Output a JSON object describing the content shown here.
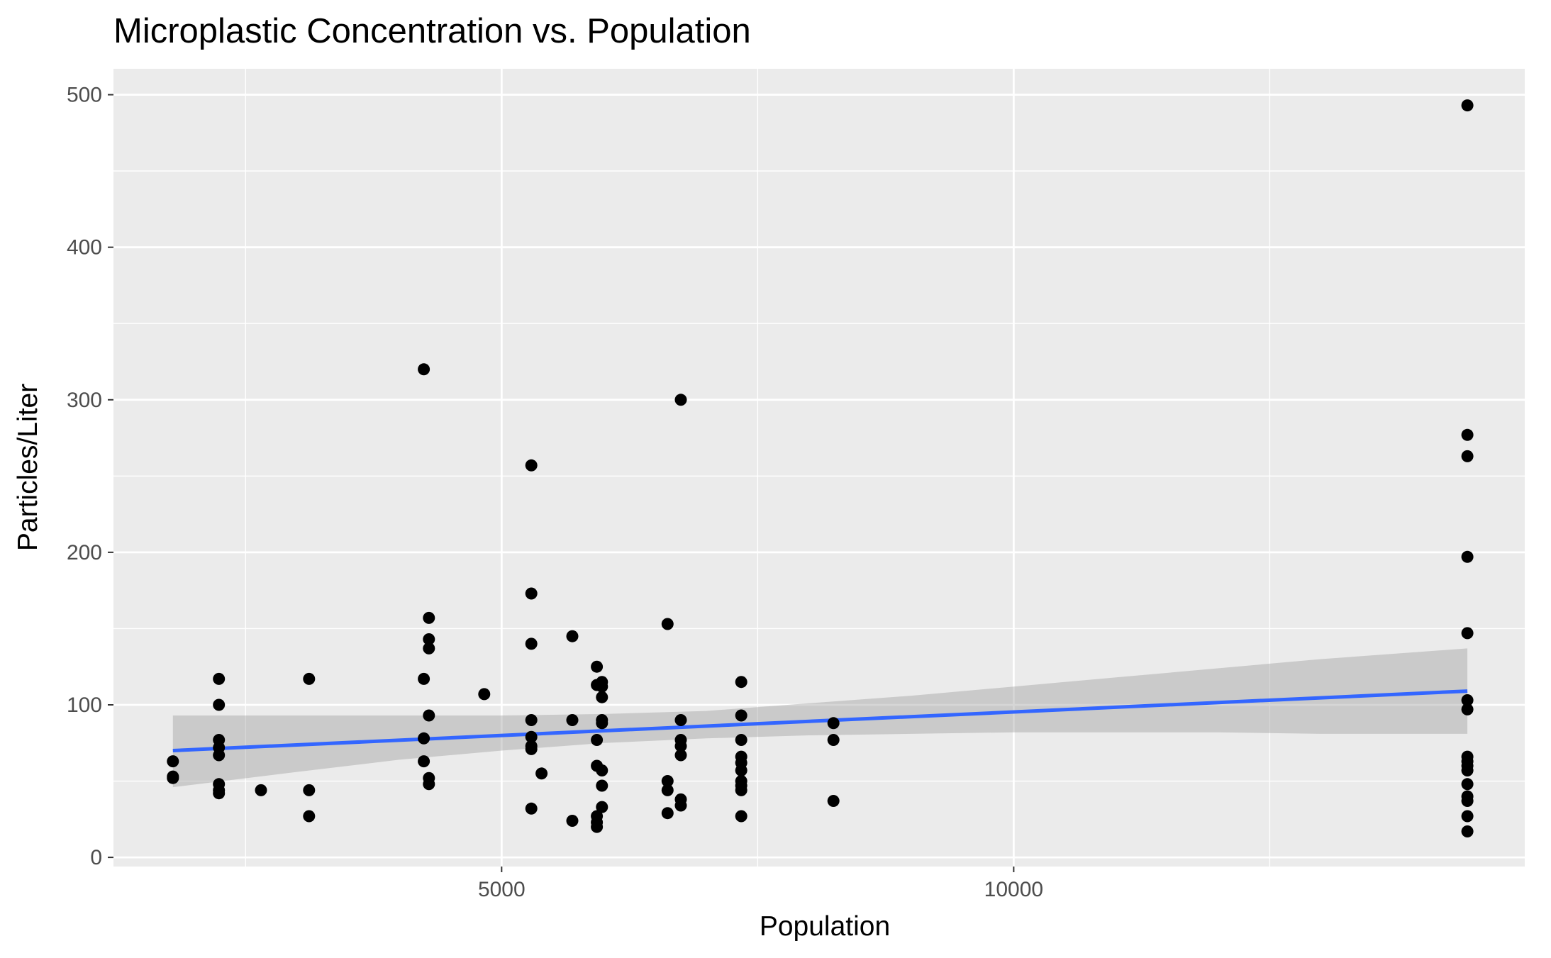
{
  "chart_data": {
    "type": "scatter",
    "title": "Microplastic Concentration vs. Population",
    "xlabel": "Population",
    "ylabel": "Particles/Liter",
    "xlim": [
      1210,
      14990
    ],
    "ylim": [
      -6,
      517
    ],
    "x_ticks": [
      5000,
      10000
    ],
    "x_tick_labels": [
      "5000",
      "10000"
    ],
    "x_minor_ticks": [
      2500,
      7500,
      12500
    ],
    "y_ticks": [
      0,
      100,
      200,
      300,
      400,
      500
    ],
    "y_tick_labels": [
      "0",
      "100",
      "200",
      "300",
      "400",
      "500"
    ],
    "y_minor_ticks": [
      50,
      150,
      250,
      350,
      450
    ],
    "grid": true,
    "legend": "none",
    "colors": {
      "panel": "#ebebeb",
      "grid": "#ffffff",
      "points": "#000000",
      "fit_line": "#3366ff",
      "confidence_band": "#999999",
      "tick_marks": "#333333",
      "tick_text": "#4d4d4d"
    },
    "series": [
      {
        "type": "scatter",
        "points": [
          [
            1790,
            63
          ],
          [
            1790,
            53
          ],
          [
            1790,
            52
          ],
          [
            2240,
            117
          ],
          [
            2240,
            100
          ],
          [
            2240,
            77
          ],
          [
            2240,
            72
          ],
          [
            2240,
            67
          ],
          [
            2240,
            48
          ],
          [
            2240,
            44
          ],
          [
            2240,
            42
          ],
          [
            2650,
            44
          ],
          [
            3120,
            117
          ],
          [
            3120,
            44
          ],
          [
            3120,
            27
          ],
          [
            4240,
            320
          ],
          [
            4240,
            117
          ],
          [
            4240,
            78
          ],
          [
            4240,
            63
          ],
          [
            4290,
            157
          ],
          [
            4290,
            143
          ],
          [
            4290,
            137
          ],
          [
            4290,
            93
          ],
          [
            4290,
            52
          ],
          [
            4290,
            48
          ],
          [
            4830,
            107
          ],
          [
            5290,
            257
          ],
          [
            5290,
            173
          ],
          [
            5290,
            140
          ],
          [
            5290,
            90
          ],
          [
            5290,
            79
          ],
          [
            5290,
            73
          ],
          [
            5290,
            71
          ],
          [
            5290,
            32
          ],
          [
            5390,
            55
          ],
          [
            5690,
            145
          ],
          [
            5690,
            90
          ],
          [
            5690,
            24
          ],
          [
            5930,
            125
          ],
          [
            5930,
            113
          ],
          [
            5930,
            77
          ],
          [
            5930,
            60
          ],
          [
            5930,
            27
          ],
          [
            5930,
            23
          ],
          [
            5930,
            20
          ],
          [
            5980,
            115
          ],
          [
            5980,
            112
          ],
          [
            5980,
            105
          ],
          [
            5980,
            90
          ],
          [
            5980,
            88
          ],
          [
            5980,
            57
          ],
          [
            5980,
            47
          ],
          [
            5980,
            33
          ],
          [
            6620,
            153
          ],
          [
            6620,
            50
          ],
          [
            6620,
            44
          ],
          [
            6620,
            29
          ],
          [
            6750,
            300
          ],
          [
            6750,
            90
          ],
          [
            6750,
            77
          ],
          [
            6750,
            73
          ],
          [
            6750,
            67
          ],
          [
            6750,
            38
          ],
          [
            6750,
            34
          ],
          [
            7340,
            115
          ],
          [
            7340,
            93
          ],
          [
            7340,
            77
          ],
          [
            7340,
            66
          ],
          [
            7340,
            62
          ],
          [
            7340,
            57
          ],
          [
            7340,
            50
          ],
          [
            7340,
            47
          ],
          [
            7340,
            44
          ],
          [
            7340,
            27
          ],
          [
            8240,
            88
          ],
          [
            8240,
            77
          ],
          [
            8240,
            37
          ],
          [
            14430,
            493
          ],
          [
            14430,
            277
          ],
          [
            14430,
            263
          ],
          [
            14430,
            197
          ],
          [
            14430,
            147
          ],
          [
            14430,
            103
          ],
          [
            14430,
            97
          ],
          [
            14430,
            66
          ],
          [
            14430,
            63
          ],
          [
            14430,
            60
          ],
          [
            14430,
            57
          ],
          [
            14430,
            48
          ],
          [
            14430,
            40
          ],
          [
            14430,
            37
          ],
          [
            14430,
            27
          ],
          [
            14430,
            17
          ]
        ]
      },
      {
        "type": "line",
        "method": "linear fit",
        "points": [
          [
            1790,
            70
          ],
          [
            14430,
            109
          ]
        ],
        "confidence_band": {
          "x": [
            1790,
            3000,
            4000,
            5000,
            6000,
            7000,
            8000,
            9000,
            10000,
            11000,
            12000,
            13000,
            14430
          ],
          "lower": [
            46,
            56,
            64,
            70,
            75,
            78,
            80,
            81,
            82,
            82,
            82,
            81,
            81
          ],
          "upper": [
            93,
            93,
            93,
            93,
            94,
            96,
            101,
            106,
            112,
            118,
            124,
            130,
            137
          ]
        }
      }
    ]
  }
}
